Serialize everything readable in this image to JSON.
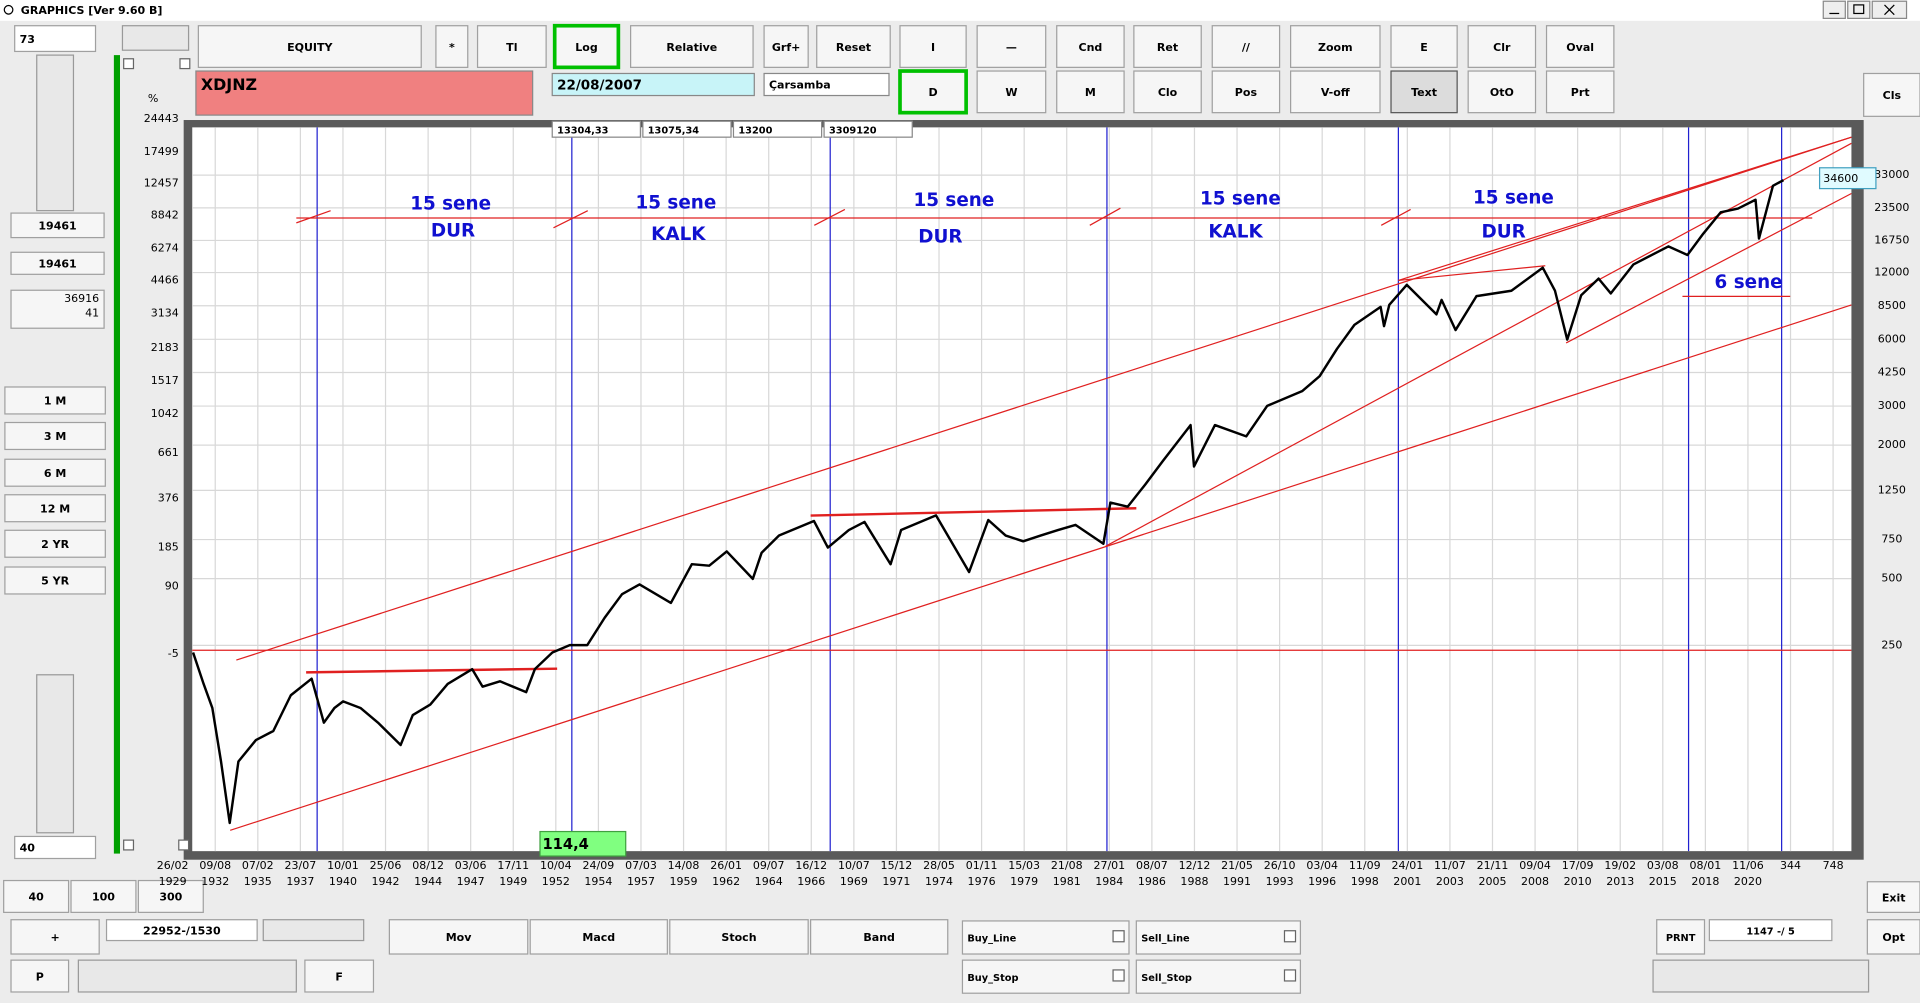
{
  "window_title": "GRAPHICS  [Ver 9.60 B]",
  "toolbar_row1": [
    "EQUITY",
    "*",
    "Tl",
    "Log",
    "Relative",
    "Grf+",
    "Reset",
    "I",
    "—",
    "Cnd",
    "Ret",
    "//",
    "Zoom",
    "E",
    "Clr",
    "Oval"
  ],
  "toolbar_row2": [
    "D",
    "W",
    "M",
    "Clo",
    "Pos",
    "V-off",
    "Text",
    "OtO",
    "Prt"
  ],
  "close_button": "Cls",
  "symbol": "XDJNZ",
  "date": "22/08/2007",
  "weekday": "Çarsamba",
  "quote_fields": [
    "13304,33",
    "13075,34",
    "13200",
    "3309120"
  ],
  "left_panel": {
    "top_input": 73,
    "field1": 19461,
    "field2": 19461,
    "field3": [
      36916,
      41
    ],
    "periods": [
      "1 M",
      "3 M",
      "6 M",
      "12 M",
      "2 YR",
      "5 YR"
    ],
    "bottom_input": 40
  },
  "bottom_panel": {
    "presets": [
      40,
      100,
      300
    ],
    "plus": "+",
    "range": "22952-/1530",
    "p": "P",
    "f": "F",
    "indicators": [
      "Mov",
      "Macd",
      "Stoch",
      "Band"
    ],
    "orders": [
      "Buy_Line",
      "Sell_Line",
      "Buy_Stop",
      "Sell_Stop"
    ],
    "print": "PRNT",
    "counter": "1147 -/ 5",
    "exit": "Exit",
    "options": "Opt"
  },
  "chart_data": {
    "type": "line",
    "log_scale": true,
    "grid": true,
    "color": "#000000",
    "left_axis_label": "%",
    "left_labels": [
      24443,
      17499,
      12457,
      8842,
      6274,
      4466,
      3134,
      2183,
      1517,
      1042,
      661,
      376,
      185,
      90,
      -5
    ],
    "ylim": [
      31.3,
      60800
    ],
    "y2lim": [
      29.5,
      54200
    ],
    "y2ticks": [
      33000,
      23500,
      16750,
      12000,
      8500,
      6000,
      4250,
      3000,
      2000,
      1250,
      750,
      500,
      250
    ],
    "xlim": [
      1930.35,
      2025.5
    ],
    "x_labels": [
      {
        "d": "26/02",
        "y": "1929"
      },
      {
        "d": "09/08",
        "y": "1932"
      },
      {
        "d": "07/02",
        "y": "1935"
      },
      {
        "d": "23/07",
        "y": "1937"
      },
      {
        "d": "10/01",
        "y": "1940"
      },
      {
        "d": "25/06",
        "y": "1942"
      },
      {
        "d": "08/12",
        "y": "1944"
      },
      {
        "d": "03/06",
        "y": "1947"
      },
      {
        "d": "17/11",
        "y": "1949"
      },
      {
        "d": "10/04",
        "y": "1952"
      },
      {
        "d": "24/09",
        "y": "1954"
      },
      {
        "d": "07/03",
        "y": "1957"
      },
      {
        "d": "14/08",
        "y": "1959"
      },
      {
        "d": "26/01",
        "y": "1962"
      },
      {
        "d": "09/07",
        "y": "1964"
      },
      {
        "d": "16/12",
        "y": "1966"
      },
      {
        "d": "10/07",
        "y": "1969"
      },
      {
        "d": "15/12",
        "y": "1971"
      },
      {
        "d": "28/05",
        "y": "1974"
      },
      {
        "d": "01/11",
        "y": "1976"
      },
      {
        "d": "15/03",
        "y": "1979"
      },
      {
        "d": "21/08",
        "y": "1981"
      },
      {
        "d": "27/01",
        "y": "1984"
      },
      {
        "d": "08/07",
        "y": "1986"
      },
      {
        "d": "12/12",
        "y": "1988"
      },
      {
        "d": "21/05",
        "y": "1991"
      },
      {
        "d": "26/10",
        "y": "1993"
      },
      {
        "d": "03/04",
        "y": "1996"
      },
      {
        "d": "11/09",
        "y": "1998"
      },
      {
        "d": "24/01",
        "y": "2001"
      },
      {
        "d": "11/07",
        "y": "2003"
      },
      {
        "d": "21/11",
        "y": "2005"
      },
      {
        "d": "09/04",
        "y": "2008"
      },
      {
        "d": "17/09",
        "y": "2010"
      },
      {
        "d": "19/02",
        "y": "2013"
      },
      {
        "d": "03/08",
        "y": "2015"
      },
      {
        "d": "08/01",
        "y": "2018"
      },
      {
        "d": "11/06",
        "y": "2020"
      },
      {
        "d": "344"
      },
      {
        "d": "748"
      }
    ],
    "x": [
      1930.4,
      1931,
      1931.5,
      1932,
      1932.5,
      1933,
      1934,
      1935,
      1936,
      1937.2,
      1937.9,
      1938.5,
      1939,
      1940,
      1941,
      1942.3,
      1943,
      1944,
      1945,
      1946.4,
      1947,
      1948,
      1949.5,
      1950,
      1951,
      1952,
      1953,
      1954,
      1955,
      1956,
      1957.8,
      1959,
      1960,
      1961,
      1962.5,
      1963,
      1964,
      1966,
      1966.8,
      1968,
      1968.9,
      1970.4,
      1971,
      1973,
      1974.9,
      1976,
      1977,
      1978,
      1979,
      1980,
      1981,
      1982.6,
      1983,
      1984,
      1985,
      1986,
      1987.6,
      1987.8,
      1989,
      1990.8,
      1992,
      1994,
      1995,
      1996,
      1997,
      1998.5,
      1998.7,
      1999,
      2000,
      2001.7,
      2002,
      2002.8,
      2004,
      2006,
      2007.8,
      2008.5,
      2009.2,
      2010,
      2011,
      2011.7,
      2013,
      2015,
      2016.1,
      2017,
      2018,
      2019,
      2020,
      2020.2,
      2021,
      2021.6
    ],
    "values": [
      250,
      180,
      140,
      80,
      42,
      80,
      100,
      110,
      160,
      190,
      120,
      140,
      150,
      140,
      120,
      95,
      130,
      145,
      180,
      210,
      175,
      185,
      165,
      210,
      250,
      270,
      270,
      360,
      460,
      510,
      420,
      630,
      620,
      720,
      540,
      710,
      850,
      990,
      750,
      900,
      980,
      630,
      900,
      1050,
      580,
      1000,
      850,
      800,
      850,
      900,
      950,
      780,
      1200,
      1150,
      1450,
      1850,
      2700,
      1750,
      2700,
      2400,
      3300,
      3850,
      4500,
      6000,
      7700,
      9300,
      7600,
      9500,
      11700,
      8600,
      10000,
      7300,
      10400,
      11000,
      14000,
      11000,
      6600,
      10500,
      12500,
      10700,
      14500,
      17500,
      16000,
      20000,
      25000,
      26000,
      28500,
      19000,
      33000,
      35000
    ],
    "annotations": [
      "15 sene",
      "DUR",
      "15 sene",
      "KALK",
      "15 sene",
      "DUR",
      "15 sene",
      "KALK",
      "15 sene",
      "DUR",
      "6 sene"
    ],
    "cursor_value": 34600,
    "cursor_readout": "114,4"
  }
}
